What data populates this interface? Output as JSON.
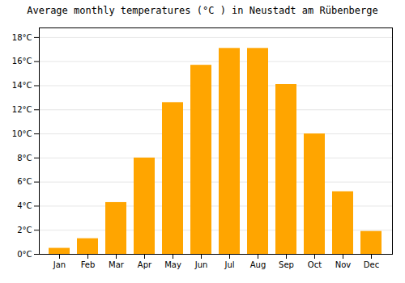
{
  "chart_data": {
    "type": "bar",
    "title": "Average monthly temperatures (°C ) in Neustadt am Rübenberge",
    "categories": [
      "Jan",
      "Feb",
      "Mar",
      "Apr",
      "May",
      "Jun",
      "Jul",
      "Aug",
      "Sep",
      "Oct",
      "Nov",
      "Dec"
    ],
    "values": [
      0.5,
      1.3,
      4.3,
      8.0,
      12.6,
      15.7,
      17.1,
      17.1,
      14.1,
      10.0,
      5.2,
      1.9
    ],
    "color": "#FFA500",
    "ylim": [
      0,
      18.8
    ],
    "yticks": [
      {
        "value": 0,
        "label": "0°C"
      },
      {
        "value": 2,
        "label": "2°C"
      },
      {
        "value": 4,
        "label": "4°C"
      },
      {
        "value": 6,
        "label": "6°C"
      },
      {
        "value": 8,
        "label": "8°C"
      },
      {
        "value": 10,
        "label": "10°C"
      },
      {
        "value": 12,
        "label": "12°C"
      },
      {
        "value": 14,
        "label": "14°C"
      },
      {
        "value": 16,
        "label": "16°C"
      },
      {
        "value": 18,
        "label": "18°C"
      }
    ],
    "grid": true
  }
}
